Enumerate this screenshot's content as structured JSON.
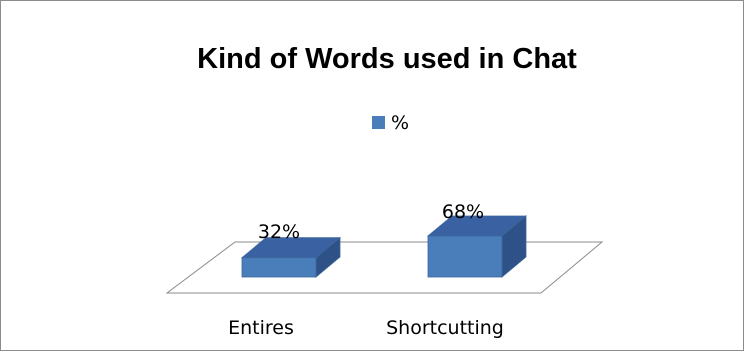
{
  "chart_data": {
    "type": "bar",
    "title": "Kind of Words used in Chat",
    "categories": [
      "Entires",
      "Shortcutting"
    ],
    "series": [
      {
        "name": "%",
        "values": [
          32,
          68
        ],
        "labels": [
          "32%",
          "68%"
        ]
      }
    ],
    "legend_position": "top",
    "grid": false,
    "style": "3d-column",
    "colors": {
      "bar_front": "#4a7ebb",
      "bar_top": "#3a62a2",
      "bar_side": "#2e5287",
      "bar_edge": "#3c679c",
      "floor_line": "#8c8c8c"
    }
  }
}
